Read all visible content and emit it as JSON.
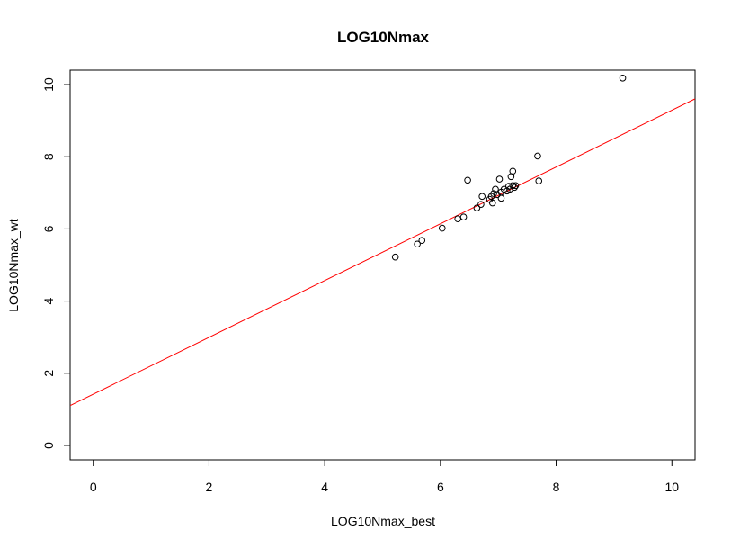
{
  "chart_data": {
    "type": "scatter",
    "title": "LOG10Nmax",
    "xlabel": "LOG10Nmax_best",
    "ylabel": "LOG10Nmax_wt",
    "xlim": [
      -0.4,
      10.4
    ],
    "ylim": [
      -0.4,
      10.4
    ],
    "xticks": [
      0,
      2,
      4,
      6,
      8,
      10
    ],
    "yticks": [
      0,
      2,
      4,
      6,
      8,
      10
    ],
    "grid": false,
    "points": {
      "x": [
        5.22,
        5.6,
        5.68,
        6.03,
        6.3,
        6.4,
        6.47,
        6.63,
        6.7,
        6.72,
        6.85,
        6.88,
        6.9,
        6.92,
        6.95,
        6.98,
        7.02,
        7.05,
        7.05,
        7.1,
        7.15,
        7.18,
        7.2,
        7.22,
        7.25,
        7.25,
        7.28,
        7.3,
        7.68,
        7.7,
        9.15
      ],
      "y": [
        5.22,
        5.58,
        5.68,
        6.02,
        6.28,
        6.33,
        7.35,
        6.58,
        6.68,
        6.9,
        6.82,
        6.9,
        6.72,
        6.98,
        7.1,
        6.95,
        7.38,
        6.85,
        7.02,
        7.1,
        7.05,
        7.18,
        7.1,
        7.45,
        7.2,
        7.6,
        7.15,
        7.2,
        8.02,
        7.33,
        10.18
      ],
      "color": "#000000"
    },
    "regression_line": {
      "intercept": 1.42,
      "slope": 0.787,
      "color": "#ff0000"
    }
  }
}
